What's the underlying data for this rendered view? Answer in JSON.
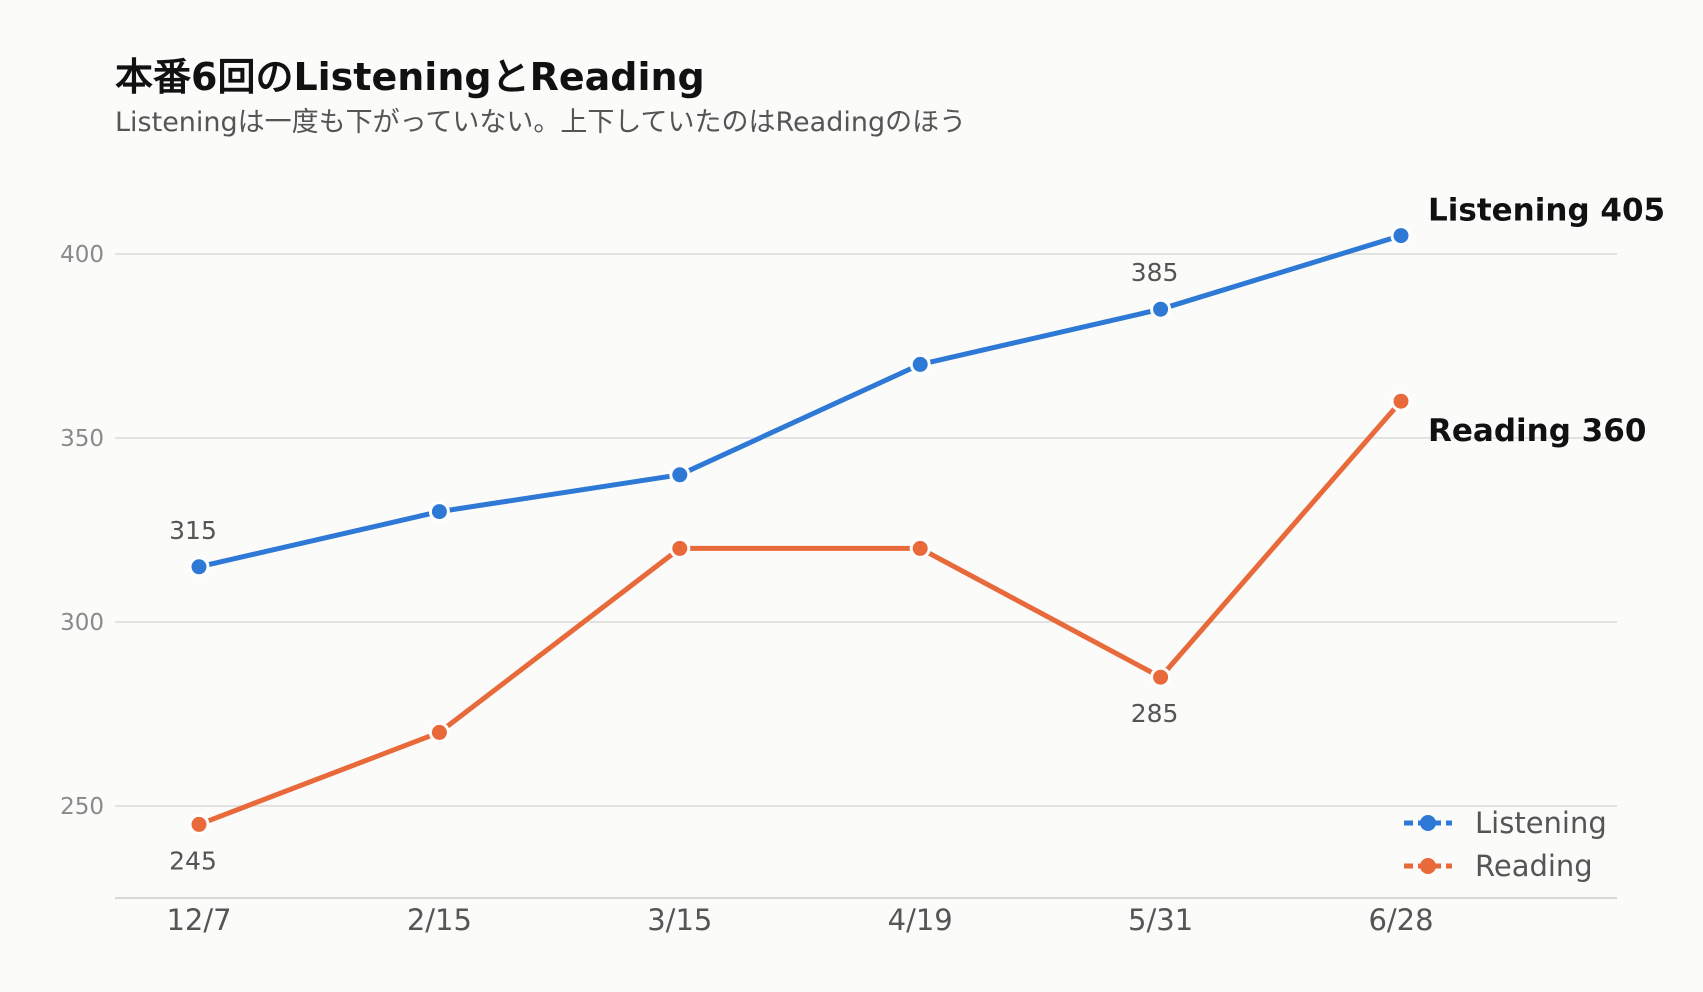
{
  "chart_data": {
    "type": "line",
    "title": "本番6回のListeningとReading",
    "subtitle": "Listeningは一度も下がっていない。上下していたのはReadingのほう",
    "categories": [
      "12/7",
      "2/15",
      "3/15",
      "4/19",
      "5/31",
      "6/28"
    ],
    "series": [
      {
        "name": "Listening",
        "color": "#2e78d6",
        "values": [
          315,
          330,
          340,
          370,
          385,
          405
        ]
      },
      {
        "name": "Reading",
        "color": "#e8693a",
        "values": [
          245,
          270,
          320,
          320,
          285,
          360
        ]
      }
    ],
    "y_ticks": [
      250,
      300,
      350,
      400
    ],
    "ylim": [
      225,
      420
    ],
    "grid": true,
    "legend": "bottom-right",
    "data_labels": [
      {
        "series": "Listening",
        "category": "12/7",
        "text": "315",
        "side": "above"
      },
      {
        "series": "Listening",
        "category": "5/31",
        "text": "385",
        "side": "above"
      },
      {
        "series": "Reading",
        "category": "12/7",
        "text": "245",
        "side": "below"
      },
      {
        "series": "Reading",
        "category": "5/31",
        "text": "285",
        "side": "below"
      }
    ],
    "end_labels": [
      {
        "series": "Listening",
        "text": "Listening 405"
      },
      {
        "series": "Reading",
        "text": "Reading 360"
      }
    ]
  }
}
